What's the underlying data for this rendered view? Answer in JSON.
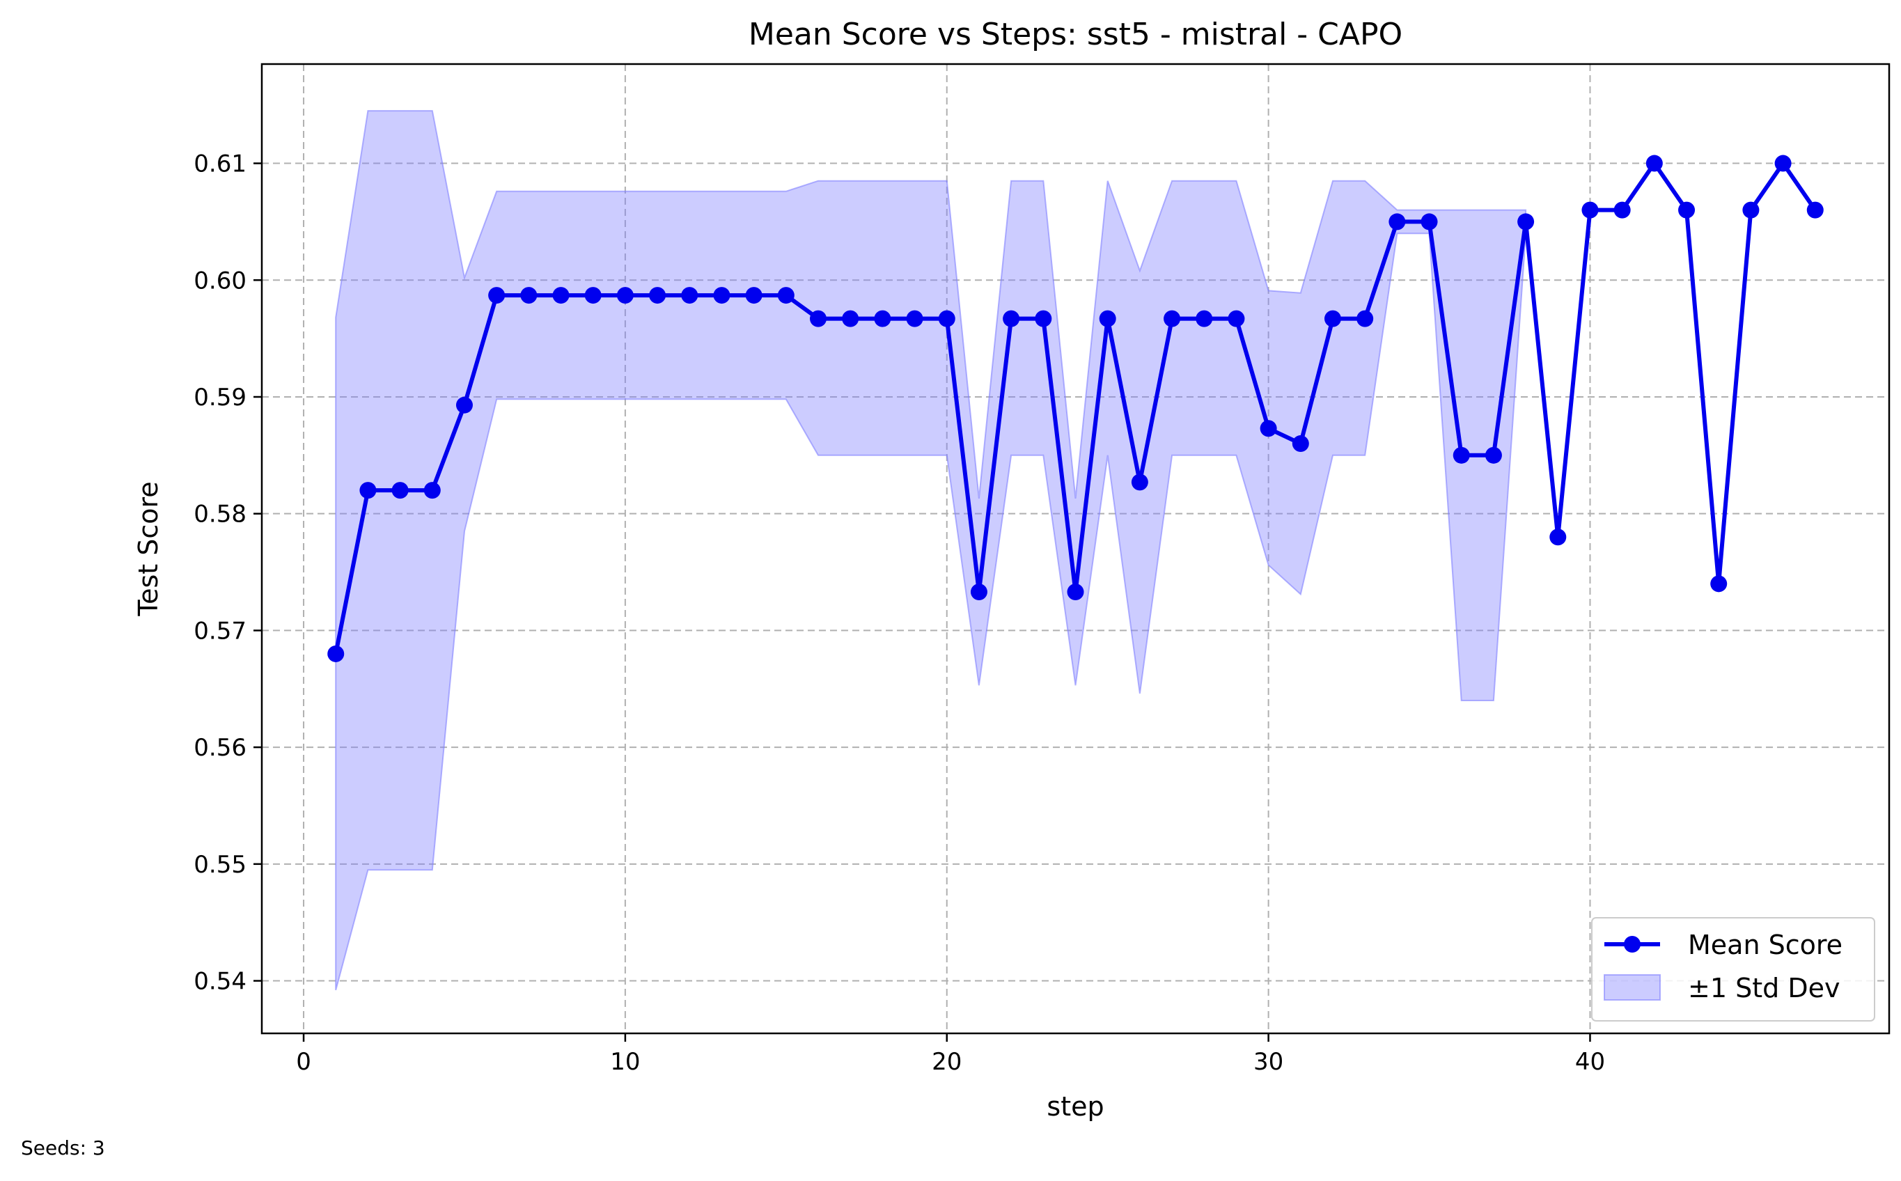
{
  "chart_data": {
    "type": "line",
    "title": "Mean Score vs Steps: sst5 - mistral - CAPO",
    "xlabel": "step",
    "ylabel": "Test Score",
    "xlim": [
      -1.3,
      49.3
    ],
    "ylim": [
      0.5355,
      0.6185
    ],
    "xticks": [
      0,
      10,
      20,
      30,
      40
    ],
    "yticks": [
      0.54,
      0.55,
      0.56,
      0.57,
      0.58,
      0.59,
      0.6,
      0.61
    ],
    "ytick_labels": [
      "0.54",
      "0.55",
      "0.56",
      "0.57",
      "0.58",
      "0.59",
      "0.60",
      "0.61"
    ],
    "grid": true,
    "legend_position": "bottom-right",
    "series": [
      {
        "name": "Mean Score",
        "kind": "line-markers",
        "color": "#0000ee",
        "x": [
          1,
          2,
          3,
          4,
          5,
          6,
          7,
          8,
          9,
          10,
          11,
          12,
          13,
          14,
          15,
          16,
          17,
          18,
          19,
          20,
          21,
          22,
          23,
          24,
          25,
          26,
          27,
          28,
          29,
          30,
          31,
          32,
          33,
          34,
          35,
          36,
          37,
          38,
          39,
          40,
          41,
          42,
          43,
          44,
          45,
          46,
          47
        ],
        "values": [
          0.568,
          0.582,
          0.582,
          0.582,
          0.5893,
          0.5987,
          0.5987,
          0.5987,
          0.5987,
          0.5987,
          0.5987,
          0.5987,
          0.5987,
          0.5987,
          0.5987,
          0.5967,
          0.5967,
          0.5967,
          0.5967,
          0.5967,
          0.5733,
          0.5967,
          0.5967,
          0.5733,
          0.5967,
          0.5827,
          0.5967,
          0.5967,
          0.5967,
          0.5873,
          0.586,
          0.5967,
          0.5967,
          0.605,
          0.605,
          0.585,
          0.585,
          0.605,
          0.578,
          0.606,
          0.606,
          0.61,
          0.606,
          0.574,
          0.606,
          0.61,
          0.606
        ]
      },
      {
        "name": "±1 Std Dev",
        "kind": "band",
        "color": "#8080ff",
        "x": [
          1,
          2,
          3,
          4,
          5,
          6,
          7,
          8,
          9,
          10,
          11,
          12,
          13,
          14,
          15,
          16,
          17,
          18,
          19,
          20,
          21,
          22,
          23,
          24,
          25,
          26,
          27,
          28,
          29,
          30,
          31,
          32,
          33,
          34,
          35,
          36,
          37,
          38
        ],
        "lower": [
          0.5392,
          0.5495,
          0.5495,
          0.5495,
          0.5785,
          0.5898,
          0.5898,
          0.5898,
          0.5898,
          0.5898,
          0.5898,
          0.5898,
          0.5898,
          0.5898,
          0.5898,
          0.585,
          0.585,
          0.585,
          0.585,
          0.585,
          0.5653,
          0.585,
          0.585,
          0.5653,
          0.585,
          0.5646,
          0.585,
          0.585,
          0.585,
          0.5756,
          0.5731,
          0.585,
          0.585,
          0.604,
          0.604,
          0.564,
          0.564,
          0.604
        ],
        "upper": [
          0.5968,
          0.6145,
          0.6145,
          0.6145,
          0.6002,
          0.6076,
          0.6076,
          0.6076,
          0.6076,
          0.6076,
          0.6076,
          0.6076,
          0.6076,
          0.6076,
          0.6076,
          0.6085,
          0.6085,
          0.6085,
          0.6085,
          0.6085,
          0.5813,
          0.6085,
          0.6085,
          0.5813,
          0.6085,
          0.6008,
          0.6085,
          0.6085,
          0.6085,
          0.5991,
          0.5989,
          0.6085,
          0.6085,
          0.606,
          0.606,
          0.606,
          0.606,
          0.606
        ]
      }
    ]
  },
  "footnote": "Seeds: 3"
}
